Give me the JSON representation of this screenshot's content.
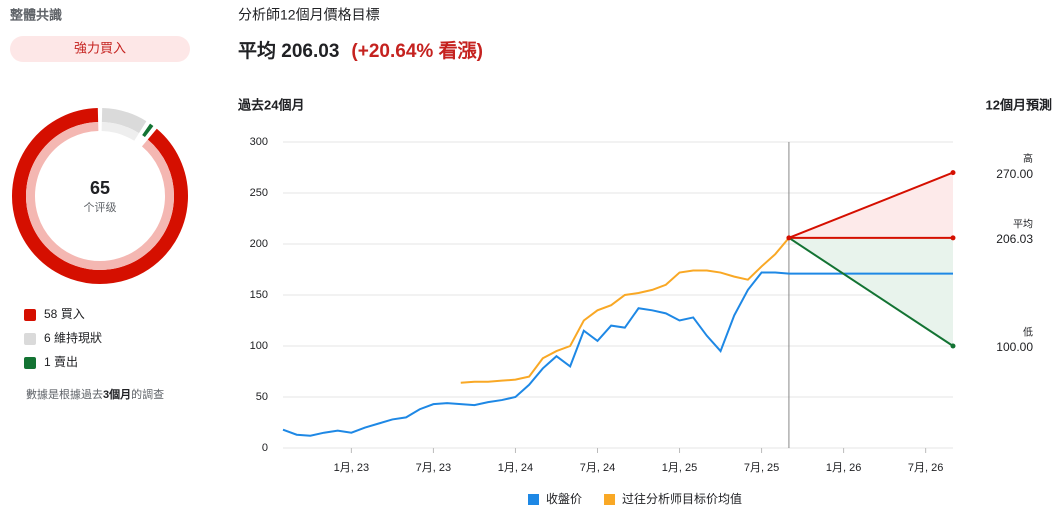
{
  "consensus": {
    "title": "整體共識",
    "rating": "強力買入",
    "total": 65,
    "total_label": "个评级",
    "ratings": [
      {
        "label": "維持現狀",
        "count": 6,
        "color": "#dadada",
        "inner": "#eeeeee"
      },
      {
        "label": "賣出",
        "count": 1,
        "color": "#137333",
        "inner": "#ffffff"
      },
      {
        "label": "買入",
        "count": 58,
        "color": "#d50f00",
        "inner": "#f4b7b2"
      }
    ],
    "legend_order": [
      2,
      0,
      1
    ],
    "note": [
      "數據是根據過去",
      "3個月",
      "的調查"
    ]
  },
  "chart_data": {
    "type": "line",
    "title": "分析師12個月價格目標",
    "average_label": "平均",
    "average": 206.03,
    "upside_text": "(+20.64% 看漲)",
    "past_label": "過去24個月",
    "forecast_label": "12個月預測",
    "x": [
      "2022-08",
      "2022-09",
      "2022-10",
      "2022-11",
      "2022-12",
      "2023-01",
      "2023-02",
      "2023-03",
      "2023-04",
      "2023-05",
      "2023-06",
      "2023-07",
      "2023-08",
      "2023-09",
      "2023-10",
      "2023-11",
      "2023-12",
      "2024-01",
      "2024-02",
      "2024-03",
      "2024-04",
      "2024-05",
      "2024-06",
      "2024-07",
      "2024-08",
      "2024-09",
      "2024-10",
      "2024-11",
      "2024-12",
      "2025-01",
      "2025-02",
      "2025-03",
      "2025-04",
      "2025-05",
      "2025-06",
      "2025-07",
      "2025-08",
      "2025-09"
    ],
    "series": [
      {
        "name": "收盤价",
        "color": "#1e88e5",
        "values": [
          18,
          13,
          12,
          15,
          17,
          15,
          20,
          24,
          28,
          30,
          38,
          43,
          44,
          43,
          42,
          45,
          47,
          50,
          62,
          78,
          90,
          80,
          115,
          105,
          120,
          118,
          137,
          135,
          132,
          125,
          128,
          110,
          95,
          130,
          155,
          172,
          172,
          171
        ]
      },
      {
        "name": "过往分析师目标价均值",
        "color": "#f9a825",
        "values": [
          null,
          null,
          null,
          null,
          null,
          null,
          null,
          null,
          null,
          null,
          null,
          null,
          null,
          64,
          65,
          65,
          66,
          67,
          70,
          88,
          95,
          100,
          125,
          135,
          140,
          150,
          152,
          155,
          160,
          172,
          174,
          174,
          172,
          168,
          165,
          178,
          190,
          206.03
        ]
      }
    ],
    "forecast": {
      "end": "2026-09",
      "targets": [
        {
          "name": "高",
          "value": 270,
          "value_label": "270.00",
          "color": "#d50f00",
          "fill": "#fdeaea"
        },
        {
          "name": "平均",
          "value": 206.03,
          "value_label": "206.03",
          "color": "#d50f00"
        },
        {
          "name": "低",
          "value": 100,
          "value_label": "100.00",
          "color": "#137333",
          "fill": "#e8f3ec"
        }
      ]
    },
    "xlim": [
      "2022-08",
      "2026-09"
    ],
    "xticks": [
      {
        "value": "2023-01",
        "label": "1月, 23"
      },
      {
        "value": "2023-07",
        "label": "7月, 23"
      },
      {
        "value": "2024-01",
        "label": "1月, 24"
      },
      {
        "value": "2024-07",
        "label": "7月, 24"
      },
      {
        "value": "2025-01",
        "label": "1月, 25"
      },
      {
        "value": "2025-07",
        "label": "7月, 25"
      },
      {
        "value": "2026-01",
        "label": "1月, 26"
      },
      {
        "value": "2026-07",
        "label": "7月, 26"
      }
    ],
    "ylim": [
      0,
      300
    ],
    "yticks": [
      0,
      50,
      100,
      150,
      200,
      250,
      300
    ],
    "grid": true
  }
}
